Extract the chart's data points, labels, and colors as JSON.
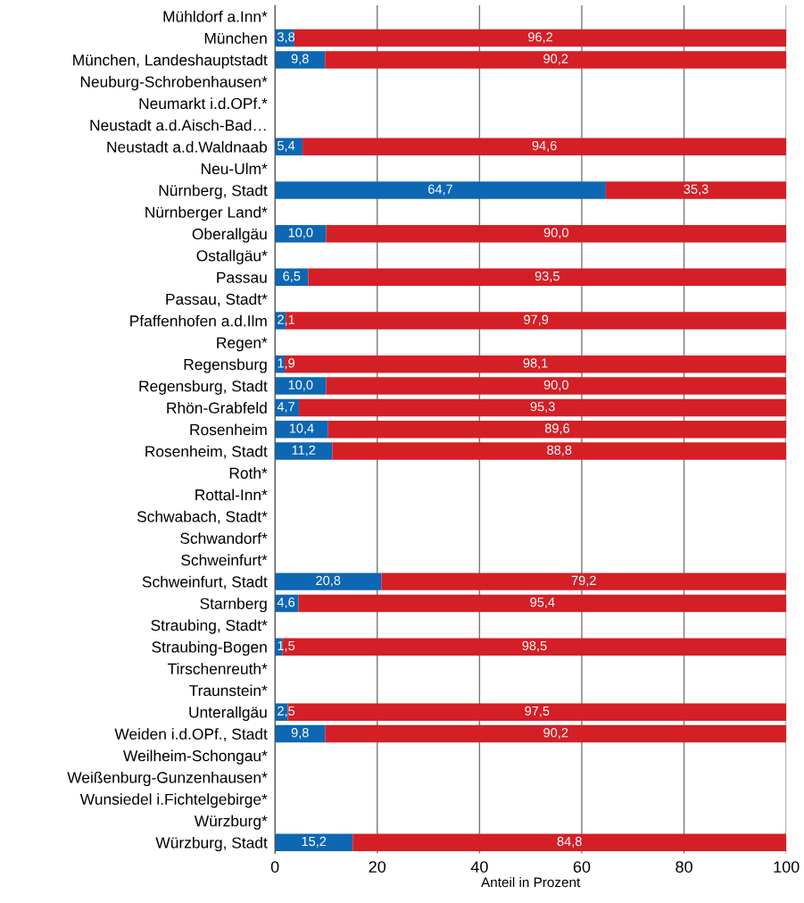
{
  "chart_data": {
    "type": "bar",
    "orientation": "horizontal",
    "stacked": true,
    "xlabel": "Anteil in Prozent",
    "categories": [
      "Mühldorf a.Inn*",
      "München",
      "München, Landeshauptstadt",
      "Neuburg-Schrobenhausen*",
      "Neumarkt i.d.OPf.*",
      "Neustadt a.d.Aisch-Bad…",
      "Neustadt a.d.Waldnaab",
      "Neu-Ulm*",
      "Nürnberg, Stadt",
      "Nürnberger Land*",
      "Oberallgäu",
      "Ostallgäu*",
      "Passau",
      "Passau, Stadt*",
      "Pfaffenhofen a.d.Ilm",
      "Regen*",
      "Regensburg",
      "Regensburg, Stadt",
      "Rhön-Grabfeld",
      "Rosenheim",
      "Rosenheim, Stadt",
      "Roth*",
      "Rottal-Inn*",
      "Schwabach, Stadt*",
      "Schwandorf*",
      "Schweinfurt*",
      "Schweinfurt, Stadt",
      "Starnberg",
      "Straubing, Stadt*",
      "Straubing-Bogen",
      "Tirschenreuth*",
      "Traunstein*",
      "Unterallgäu",
      "Weiden i.d.OPf., Stadt",
      "Weilheim-Schongau*",
      "Weißenburg-Gunzenhausen*",
      "Wunsiedel i.Fichtelgebirge*",
      "Würzburg*",
      "Würzburg, Stadt"
    ],
    "series": [
      {
        "color": "#0e67b3",
        "values": [
          null,
          3.8,
          9.8,
          null,
          null,
          null,
          5.4,
          null,
          64.7,
          null,
          10.0,
          null,
          6.5,
          null,
          2.1,
          null,
          1.9,
          10.0,
          4.7,
          10.4,
          11.2,
          null,
          null,
          null,
          null,
          null,
          20.8,
          4.6,
          null,
          1.5,
          null,
          null,
          2.5,
          9.8,
          null,
          null,
          null,
          null,
          15.2
        ],
        "value_labels": [
          null,
          "3,8",
          "9,8",
          null,
          null,
          null,
          "5,4",
          null,
          "64,7",
          null,
          "10,0",
          null,
          "6,5",
          null,
          "2,1",
          null,
          "1,9",
          "10,0",
          "4,7",
          "10,4",
          "11,2",
          null,
          null,
          null,
          null,
          null,
          "20,8",
          "4,6",
          null,
          "1,5",
          null,
          null,
          "2,5",
          "9,8",
          null,
          null,
          null,
          null,
          "15,2"
        ]
      },
      {
        "color": "#d41f27",
        "values": [
          null,
          96.2,
          90.2,
          null,
          null,
          null,
          94.6,
          null,
          35.3,
          null,
          90.0,
          null,
          93.5,
          null,
          97.9,
          null,
          98.1,
          90.0,
          95.3,
          89.6,
          88.8,
          null,
          null,
          null,
          null,
          null,
          79.2,
          95.4,
          null,
          98.5,
          null,
          null,
          97.5,
          90.2,
          null,
          null,
          null,
          null,
          84.8
        ],
        "value_labels": [
          null,
          "96,2",
          "90,2",
          null,
          null,
          null,
          "94,6",
          null,
          "35,3",
          null,
          "90,0",
          null,
          "93,5",
          null,
          "97,9",
          null,
          "98,1",
          "90,0",
          "95,3",
          "89,6",
          "88,8",
          null,
          null,
          null,
          null,
          null,
          "79,2",
          "95,4",
          null,
          "98,5",
          null,
          null,
          "97,5",
          "90,2",
          null,
          null,
          null,
          null,
          "84,8"
        ]
      }
    ],
    "xlim": [
      0,
      100
    ],
    "xticks": [
      0,
      20,
      40,
      60,
      80,
      100
    ],
    "grid": "x"
  }
}
